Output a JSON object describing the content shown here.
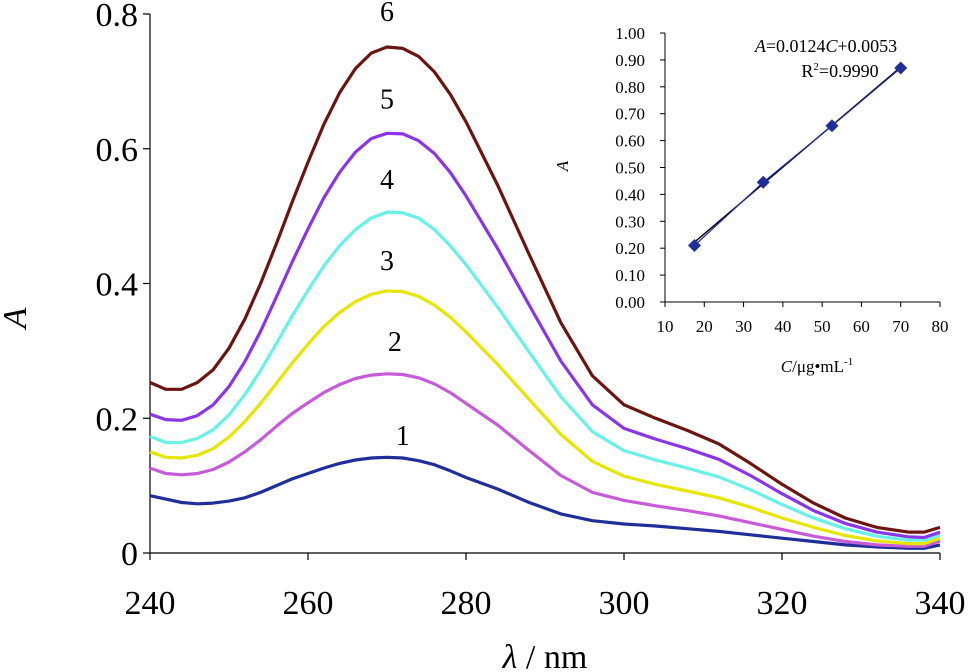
{
  "chart_data": [
    {
      "type": "line",
      "xlabel": {
        "symbol": "λ",
        "unit": " / nm"
      },
      "ylabel": "A",
      "xlim": [
        240,
        340
      ],
      "ylim": [
        0,
        0.8
      ],
      "x_ticks": [
        240,
        260,
        280,
        300,
        320,
        340
      ],
      "y_ticks": [
        0,
        0.2,
        0.4,
        0.6,
        0.8
      ],
      "y_tick_labels": [
        "0",
        "0.2",
        "0.4",
        "0.6",
        "0.8"
      ],
      "grid": false,
      "series": [
        {
          "name": "1",
          "color": "#1f2f9a",
          "label_at": [
            272,
            0.16
          ],
          "points": [
            [
              240,
              0.085
            ],
            [
              242,
              0.08
            ],
            [
              244,
              0.075
            ],
            [
              246,
              0.073
            ],
            [
              248,
              0.074
            ],
            [
              250,
              0.077
            ],
            [
              252,
              0.082
            ],
            [
              254,
              0.09
            ],
            [
              256,
              0.1
            ],
            [
              258,
              0.11
            ],
            [
              260,
              0.118
            ],
            [
              262,
              0.126
            ],
            [
              264,
              0.133
            ],
            [
              266,
              0.138
            ],
            [
              268,
              0.141
            ],
            [
              270,
              0.142
            ],
            [
              272,
              0.141
            ],
            [
              274,
              0.137
            ],
            [
              276,
              0.131
            ],
            [
              278,
              0.122
            ],
            [
              280,
              0.112
            ],
            [
              284,
              0.095
            ],
            [
              288,
              0.075
            ],
            [
              292,
              0.058
            ],
            [
              296,
              0.048
            ],
            [
              300,
              0.043
            ],
            [
              304,
              0.04
            ],
            [
              308,
              0.036
            ],
            [
              312,
              0.032
            ],
            [
              316,
              0.027
            ],
            [
              320,
              0.022
            ],
            [
              324,
              0.017
            ],
            [
              328,
              0.012
            ],
            [
              332,
              0.009
            ],
            [
              336,
              0.007
            ],
            [
              338,
              0.007
            ],
            [
              340,
              0.012
            ]
          ]
        },
        {
          "name": "2",
          "color": "#c65ad8",
          "label_at": [
            271,
            0.3
          ],
          "points": [
            [
              240,
              0.126
            ],
            [
              242,
              0.118
            ],
            [
              244,
              0.116
            ],
            [
              246,
              0.118
            ],
            [
              248,
              0.124
            ],
            [
              250,
              0.135
            ],
            [
              252,
              0.15
            ],
            [
              254,
              0.168
            ],
            [
              256,
              0.188
            ],
            [
              258,
              0.207
            ],
            [
              260,
              0.223
            ],
            [
              262,
              0.238
            ],
            [
              264,
              0.25
            ],
            [
              266,
              0.259
            ],
            [
              268,
              0.264
            ],
            [
              270,
              0.266
            ],
            [
              272,
              0.265
            ],
            [
              274,
              0.26
            ],
            [
              276,
              0.251
            ],
            [
              278,
              0.238
            ],
            [
              280,
              0.222
            ],
            [
              284,
              0.19
            ],
            [
              288,
              0.152
            ],
            [
              292,
              0.115
            ],
            [
              296,
              0.09
            ],
            [
              300,
              0.078
            ],
            [
              304,
              0.07
            ],
            [
              308,
              0.063
            ],
            [
              312,
              0.055
            ],
            [
              316,
              0.045
            ],
            [
              320,
              0.035
            ],
            [
              324,
              0.025
            ],
            [
              328,
              0.017
            ],
            [
              332,
              0.012
            ],
            [
              336,
              0.01
            ],
            [
              338,
              0.01
            ],
            [
              340,
              0.018
            ]
          ]
        },
        {
          "name": "3",
          "color": "#e6e600",
          "label_at": [
            270,
            0.42
          ],
          "points": [
            [
              240,
              0.15
            ],
            [
              242,
              0.142
            ],
            [
              244,
              0.141
            ],
            [
              246,
              0.145
            ],
            [
              248,
              0.155
            ],
            [
              250,
              0.172
            ],
            [
              252,
              0.195
            ],
            [
              254,
              0.222
            ],
            [
              256,
              0.252
            ],
            [
              258,
              0.282
            ],
            [
              260,
              0.31
            ],
            [
              262,
              0.336
            ],
            [
              264,
              0.357
            ],
            [
              266,
              0.373
            ],
            [
              268,
              0.384
            ],
            [
              270,
              0.389
            ],
            [
              272,
              0.388
            ],
            [
              274,
              0.381
            ],
            [
              276,
              0.368
            ],
            [
              278,
              0.35
            ],
            [
              280,
              0.328
            ],
            [
              284,
              0.28
            ],
            [
              288,
              0.228
            ],
            [
              292,
              0.176
            ],
            [
              296,
              0.136
            ],
            [
              300,
              0.114
            ],
            [
              304,
              0.102
            ],
            [
              308,
              0.092
            ],
            [
              312,
              0.082
            ],
            [
              316,
              0.068
            ],
            [
              320,
              0.052
            ],
            [
              324,
              0.038
            ],
            [
              328,
              0.026
            ],
            [
              332,
              0.018
            ],
            [
              336,
              0.014
            ],
            [
              338,
              0.014
            ],
            [
              340,
              0.022
            ]
          ]
        },
        {
          "name": "4",
          "color": "#66f2e6",
          "label_at": [
            270,
            0.54
          ],
          "points": [
            [
              240,
              0.173
            ],
            [
              242,
              0.164
            ],
            [
              244,
              0.164
            ],
            [
              246,
              0.17
            ],
            [
              248,
              0.183
            ],
            [
              250,
              0.205
            ],
            [
              252,
              0.235
            ],
            [
              254,
              0.271
            ],
            [
              256,
              0.311
            ],
            [
              258,
              0.352
            ],
            [
              260,
              0.39
            ],
            [
              262,
              0.426
            ],
            [
              264,
              0.456
            ],
            [
              266,
              0.48
            ],
            [
              268,
              0.497
            ],
            [
              270,
              0.506
            ],
            [
              272,
              0.505
            ],
            [
              274,
              0.497
            ],
            [
              276,
              0.48
            ],
            [
              278,
              0.456
            ],
            [
              280,
              0.428
            ],
            [
              284,
              0.365
            ],
            [
              288,
              0.298
            ],
            [
              292,
              0.232
            ],
            [
              296,
              0.18
            ],
            [
              300,
              0.152
            ],
            [
              304,
              0.138
            ],
            [
              308,
              0.126
            ],
            [
              312,
              0.113
            ],
            [
              316,
              0.094
            ],
            [
              320,
              0.072
            ],
            [
              324,
              0.052
            ],
            [
              328,
              0.036
            ],
            [
              332,
              0.025
            ],
            [
              336,
              0.019
            ],
            [
              338,
              0.019
            ],
            [
              340,
              0.027
            ]
          ]
        },
        {
          "name": "5",
          "color": "#8a35e8",
          "label_at": [
            270,
            0.66
          ],
          "points": [
            [
              240,
              0.206
            ],
            [
              242,
              0.198
            ],
            [
              244,
              0.197
            ],
            [
              246,
              0.204
            ],
            [
              248,
              0.22
            ],
            [
              250,
              0.247
            ],
            [
              252,
              0.284
            ],
            [
              254,
              0.329
            ],
            [
              256,
              0.38
            ],
            [
              258,
              0.432
            ],
            [
              260,
              0.481
            ],
            [
              262,
              0.527
            ],
            [
              264,
              0.565
            ],
            [
              266,
              0.595
            ],
            [
              268,
              0.615
            ],
            [
              270,
              0.623
            ],
            [
              272,
              0.622
            ],
            [
              274,
              0.612
            ],
            [
              276,
              0.593
            ],
            [
              278,
              0.565
            ],
            [
              280,
              0.53
            ],
            [
              284,
              0.452
            ],
            [
              288,
              0.368
            ],
            [
              292,
              0.285
            ],
            [
              296,
              0.22
            ],
            [
              300,
              0.185
            ],
            [
              304,
              0.169
            ],
            [
              308,
              0.155
            ],
            [
              312,
              0.139
            ],
            [
              316,
              0.115
            ],
            [
              320,
              0.088
            ],
            [
              324,
              0.063
            ],
            [
              328,
              0.044
            ],
            [
              332,
              0.031
            ],
            [
              336,
              0.024
            ],
            [
              338,
              0.023
            ],
            [
              340,
              0.031
            ]
          ]
        },
        {
          "name": "6",
          "color": "#6b1410",
          "label_at": [
            270,
            0.79
          ],
          "points": [
            [
              240,
              0.253
            ],
            [
              242,
              0.243
            ],
            [
              244,
              0.243
            ],
            [
              246,
              0.253
            ],
            [
              248,
              0.272
            ],
            [
              250,
              0.304
            ],
            [
              252,
              0.347
            ],
            [
              254,
              0.4
            ],
            [
              256,
              0.459
            ],
            [
              258,
              0.521
            ],
            [
              260,
              0.58
            ],
            [
              262,
              0.636
            ],
            [
              264,
              0.683
            ],
            [
              266,
              0.719
            ],
            [
              268,
              0.742
            ],
            [
              270,
              0.751
            ],
            [
              272,
              0.749
            ],
            [
              274,
              0.737
            ],
            [
              276,
              0.714
            ],
            [
              278,
              0.681
            ],
            [
              280,
              0.64
            ],
            [
              284,
              0.546
            ],
            [
              288,
              0.443
            ],
            [
              292,
              0.342
            ],
            [
              296,
              0.263
            ],
            [
              300,
              0.22
            ],
            [
              304,
              0.2
            ],
            [
              308,
              0.182
            ],
            [
              312,
              0.162
            ],
            [
              316,
              0.133
            ],
            [
              320,
              0.102
            ],
            [
              324,
              0.074
            ],
            [
              328,
              0.052
            ],
            [
              332,
              0.038
            ],
            [
              336,
              0.031
            ],
            [
              338,
              0.031
            ],
            [
              340,
              0.038
            ]
          ]
        }
      ]
    },
    {
      "type": "scatter",
      "inset": true,
      "xlabel": {
        "symbol": "C",
        "unit": "/μg•mL",
        "superscript": "-1"
      },
      "ylabel": "A",
      "xlim": [
        10,
        80
      ],
      "ylim": [
        0,
        1.0
      ],
      "x_ticks": [
        10,
        20,
        30,
        40,
        50,
        60,
        70,
        80
      ],
      "y_ticks": [
        0,
        0.1,
        0.2,
        0.3,
        0.4,
        0.5,
        0.6,
        0.7,
        0.8,
        0.9,
        1.0
      ],
      "y_tick_labels": [
        "0.00",
        "0.10",
        "0.20",
        "0.30",
        "0.40",
        "0.50",
        "0.60",
        "0.70",
        "0.80",
        "0.90",
        "1.00"
      ],
      "grid": false,
      "marker_color": "#1f2f9a",
      "points": [
        [
          17.5,
          0.21
        ],
        [
          35,
          0.445
        ],
        [
          52.5,
          0.655
        ],
        [
          70,
          0.87
        ]
      ],
      "fit": {
        "slope": 0.0124,
        "intercept": 0.0053,
        "equation": {
          "lhs": "A",
          "eq_part": "=0.0124",
          "var": "C",
          "rest": "+0.0053"
        },
        "r2": {
          "label": "R",
          "sup": "2",
          "value": "=0.9990"
        }
      }
    }
  ]
}
